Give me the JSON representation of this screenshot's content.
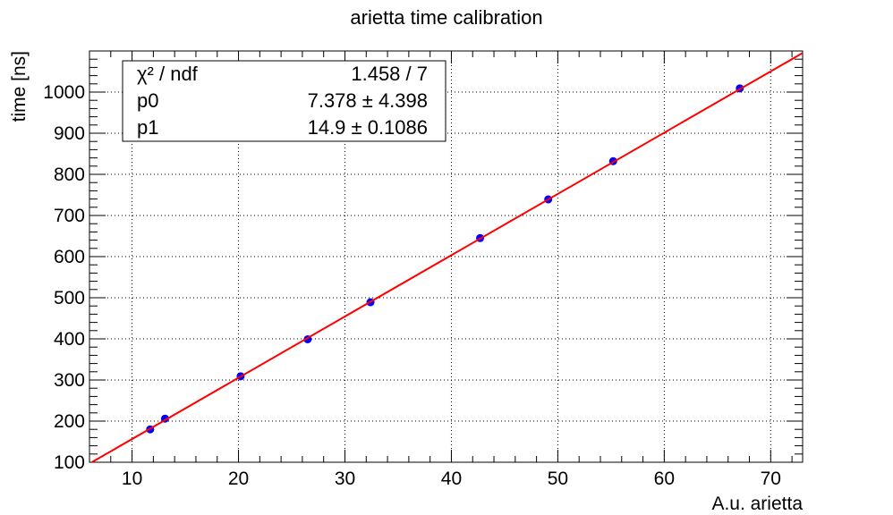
{
  "chart_data": {
    "type": "scatter",
    "title": "arietta time calibration",
    "xlabel": "A.u. arietta",
    "ylabel": "time [ns]",
    "xlim": [
      6,
      73
    ],
    "ylim": [
      100,
      1100
    ],
    "xticks": [
      10,
      20,
      30,
      40,
      50,
      60,
      70
    ],
    "yticks": [
      100,
      200,
      300,
      400,
      500,
      600,
      700,
      800,
      900,
      1000
    ],
    "grid": true,
    "points": {
      "x": [
        11.7,
        13.1,
        20.2,
        26.5,
        32.4,
        42.7,
        49.1,
        55.2,
        67.1
      ],
      "y": [
        180,
        206,
        309,
        399,
        489,
        645,
        739,
        832,
        1009
      ]
    },
    "fit": {
      "p0": 7.378,
      "p1": 14.9
    },
    "marker_color": "#0000ff",
    "fit_color": "#ff0000",
    "stats_box": {
      "position": "top-left",
      "rows": [
        {
          "label": "χ² / ndf",
          "value": "1.458 / 7"
        },
        {
          "label": "p0",
          "value": "7.378 ± 4.398"
        },
        {
          "label": "p1",
          "value": "14.9 ± 0.1086"
        }
      ]
    }
  }
}
